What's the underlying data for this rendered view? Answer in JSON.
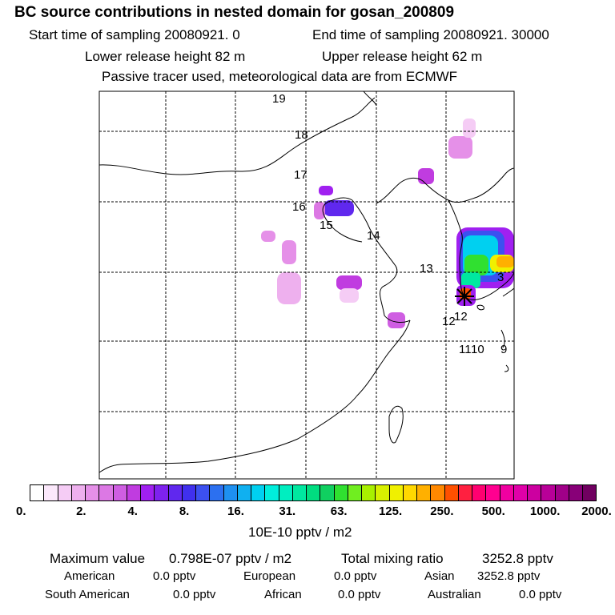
{
  "chart_data": {
    "type": "heatmap",
    "title": "BC  source contributions in nested domain for gosan_200809",
    "header_lines": [
      {
        "left": "Start time of sampling 20080921.     0",
        "right": "End time of sampling 20080921. 30000"
      },
      {
        "left": "Lower release height   82 m",
        "right": "Upper release height   62 m"
      },
      {
        "left": "Passive tracer used, meteorological data are from ECMWF",
        "right": ""
      }
    ],
    "trajectory_labels": [
      "19",
      "18",
      "17",
      "16",
      "15",
      "14",
      "13",
      "12",
      "12",
      "11",
      "10",
      "9",
      "3"
    ],
    "receptor": "gosan",
    "colorbar": {
      "ticks": [
        "0.",
        "2.",
        "4.",
        "8.",
        "16.",
        "31.",
        "63.",
        "125.",
        "250.",
        "500.",
        "1000.",
        "2000."
      ],
      "unit_label": "10E-10 pptv / m2",
      "colors": [
        "#ffffff",
        "#fbe8fb",
        "#f5ccf5",
        "#eeb0ee",
        "#e590e8",
        "#dc78e4",
        "#cf5ee2",
        "#c03ce0",
        "#a020f0",
        "#7e22ee",
        "#6028ee",
        "#4030ee",
        "#3c50f0",
        "#2c70f0",
        "#1e90f0",
        "#10b0f0",
        "#00d0f0",
        "#00eedc",
        "#00eec0",
        "#00e8a0",
        "#00dd80",
        "#10d060",
        "#30e030",
        "#70ee20",
        "#a8f000",
        "#d8f000",
        "#f0f000",
        "#ffd800",
        "#ffb000",
        "#ff8800",
        "#ff5000",
        "#ff2040",
        "#ff0070",
        "#ff0090",
        "#f000a0",
        "#e000a8",
        "#cc00a0",
        "#b80098",
        "#a00088",
        "#880078",
        "#700060"
      ]
    },
    "summary": {
      "max_label": "Maximum value",
      "max_value": "0.798E-07 pptv / m2",
      "total_label": "Total mixing ratio",
      "total_value": "3252.8 pptv"
    },
    "regions": [
      {
        "name": "American",
        "value": "0.0 pptv"
      },
      {
        "name": "European",
        "value": "0.0 pptv"
      },
      {
        "name": "Asian",
        "value": "3252.8 pptv"
      },
      {
        "name": "South American",
        "value": "0.0 pptv"
      },
      {
        "name": "African",
        "value": "0.0 pptv"
      },
      {
        "name": "Australian",
        "value": "0.0 pptv"
      }
    ]
  }
}
